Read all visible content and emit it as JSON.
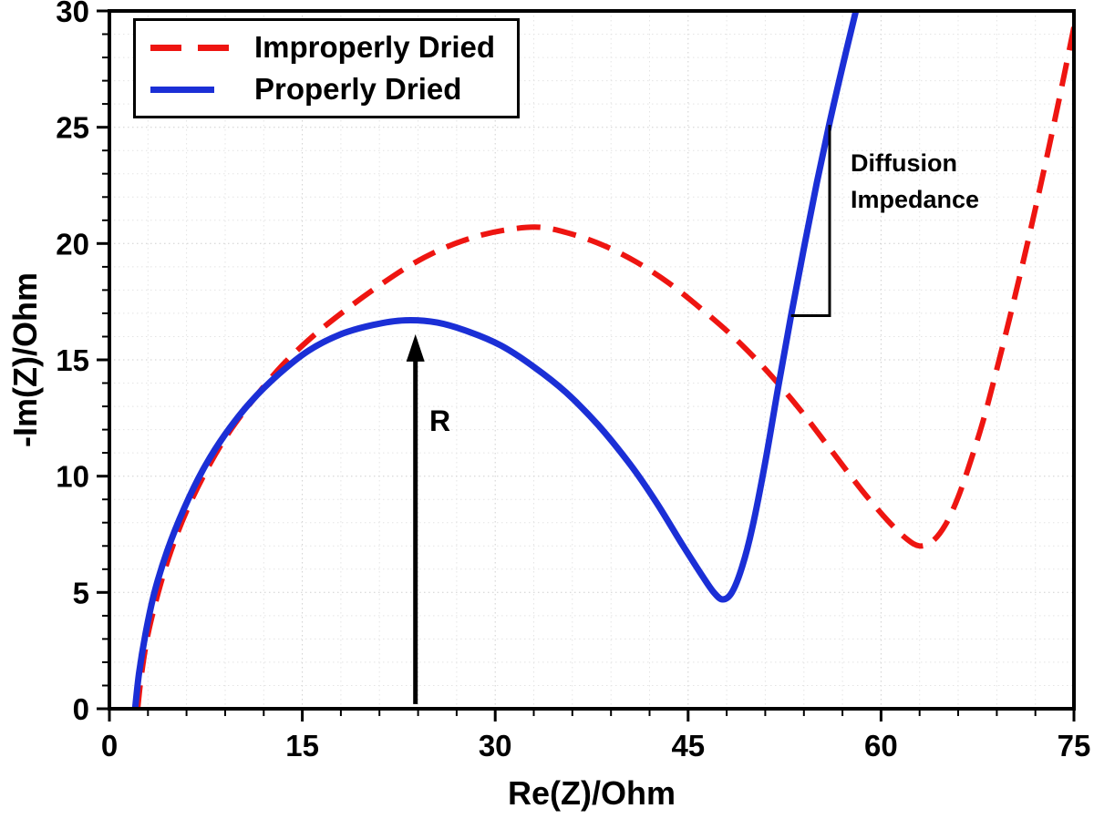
{
  "figure": {
    "background": "#ffffff"
  },
  "chart_data": {
    "type": "line",
    "title": "",
    "xlabel": "Re(Z)/Ohm",
    "ylabel": "-Im(Z)/Ohm",
    "xlim": [
      0,
      75
    ],
    "ylim": [
      0,
      30
    ],
    "x_major_ticks": [
      0,
      15,
      30,
      45,
      60,
      75
    ],
    "y_major_ticks": [
      0,
      5,
      10,
      15,
      20,
      25,
      30
    ],
    "x_minor_step": 3,
    "y_minor_step": 1,
    "grid": "dotted",
    "grid_minor_color": "#e4e4e4",
    "grid_major_color": "#cfcfcf",
    "axis_color": "#000000",
    "legend_position": "top-left",
    "series": [
      {
        "name": "Improperly Dried",
        "color": "#ee1511",
        "style": "dashed",
        "line_width": 6,
        "points": [
          [
            2.2,
            0
          ],
          [
            2.5,
            1.5
          ],
          [
            3.0,
            3.2
          ],
          [
            3.8,
            5.0
          ],
          [
            4.8,
            6.8
          ],
          [
            6.0,
            8.5
          ],
          [
            7.5,
            10.2
          ],
          [
            9.2,
            11.8
          ],
          [
            11.2,
            13.3
          ],
          [
            13.5,
            14.8
          ],
          [
            16.0,
            16.1
          ],
          [
            18.5,
            17.2
          ],
          [
            21.0,
            18.2
          ],
          [
            23.5,
            19.1
          ],
          [
            26.0,
            19.8
          ],
          [
            28.5,
            20.3
          ],
          [
            31.0,
            20.6
          ],
          [
            33.5,
            20.7
          ],
          [
            36.0,
            20.4
          ],
          [
            38.5,
            19.9
          ],
          [
            41.0,
            19.2
          ],
          [
            43.5,
            18.3
          ],
          [
            46.0,
            17.2
          ],
          [
            48.5,
            16.0
          ],
          [
            51.0,
            14.6
          ],
          [
            53.5,
            13.0
          ],
          [
            56.0,
            11.2
          ],
          [
            58.5,
            9.4
          ],
          [
            60.5,
            8.1
          ],
          [
            62.0,
            7.3
          ],
          [
            63.0,
            7.0
          ],
          [
            64.0,
            7.2
          ],
          [
            65.0,
            7.9
          ],
          [
            66.0,
            9.1
          ],
          [
            67.0,
            10.7
          ],
          [
            68.0,
            12.5
          ],
          [
            69.0,
            14.6
          ],
          [
            70.0,
            16.8
          ],
          [
            71.0,
            19.1
          ],
          [
            72.0,
            21.5
          ],
          [
            73.0,
            24.0
          ],
          [
            74.0,
            26.6
          ],
          [
            75.0,
            29.3
          ]
        ]
      },
      {
        "name": "Properly Dried",
        "color": "#1b2fd6",
        "style": "solid",
        "line_width": 7,
        "points": [
          [
            2.0,
            0
          ],
          [
            2.3,
            1.5
          ],
          [
            2.8,
            3.2
          ],
          [
            3.5,
            5.0
          ],
          [
            4.5,
            6.8
          ],
          [
            5.8,
            8.6
          ],
          [
            7.3,
            10.3
          ],
          [
            9.0,
            11.8
          ],
          [
            11.0,
            13.2
          ],
          [
            13.2,
            14.4
          ],
          [
            15.5,
            15.4
          ],
          [
            18.0,
            16.1
          ],
          [
            20.5,
            16.5
          ],
          [
            23.0,
            16.7
          ],
          [
            25.5,
            16.6
          ],
          [
            28.0,
            16.2
          ],
          [
            30.5,
            15.6
          ],
          [
            33.0,
            14.7
          ],
          [
            35.5,
            13.6
          ],
          [
            38.0,
            12.2
          ],
          [
            40.5,
            10.5
          ],
          [
            42.5,
            8.9
          ],
          [
            44.5,
            7.1
          ],
          [
            46.0,
            5.8
          ],
          [
            47.0,
            5.0
          ],
          [
            47.7,
            4.7
          ],
          [
            48.4,
            5.0
          ],
          [
            49.2,
            6.1
          ],
          [
            50.0,
            7.8
          ],
          [
            51.0,
            10.6
          ],
          [
            52.0,
            13.8
          ],
          [
            53.0,
            16.9
          ],
          [
            54.0,
            19.8
          ],
          [
            55.0,
            22.6
          ],
          [
            56.0,
            25.2
          ],
          [
            57.0,
            27.6
          ],
          [
            58.0,
            29.9
          ],
          [
            58.8,
            31.6
          ]
        ]
      }
    ],
    "annotations": {
      "r_arrow": {
        "label": "R",
        "x": 23.8,
        "y_start": 0.2,
        "y_end": 16.1,
        "label_x": 24.9,
        "label_y": 12.2
      },
      "diffusion_triangle": {
        "label_line1": "Diffusion",
        "label_line2": "Impedance",
        "left_x": 53.0,
        "base_y": 16.9,
        "corner_x": 56.0,
        "top_y": 25.1,
        "label_x": 57.6,
        "label_y": 23.6
      }
    }
  }
}
